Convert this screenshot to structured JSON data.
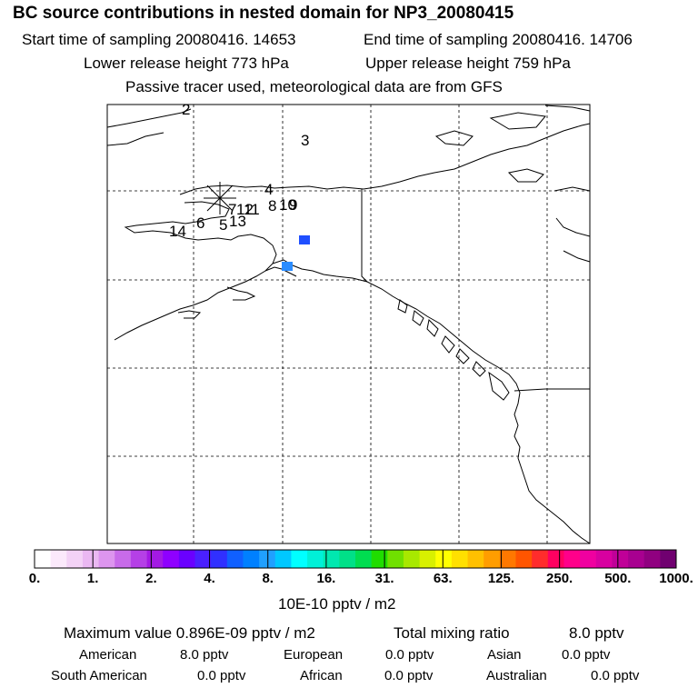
{
  "title": "BC  source contributions in nested domain for NP3_20080415",
  "header": {
    "start": "Start time of sampling 20080416. 14653",
    "end": "End time of sampling 20080416. 14706",
    "lower": "Lower release height  773 hPa",
    "upper": "Upper release height  759 hPa",
    "tracer": "Passive tracer used, meteorological data are from GFS"
  },
  "map": {
    "trajectory_labels": [
      "2",
      "3",
      "4",
      "7",
      "12",
      "11",
      "8",
      "10",
      "9",
      "6",
      "5",
      "13",
      "14"
    ],
    "hotspot_colors": [
      "#1f4fff",
      "#2a8cff"
    ]
  },
  "colorbar": {
    "ticks": [
      "0.",
      "1.",
      "2.",
      "4.",
      "8.",
      "16.",
      "31.",
      "63.",
      "125.",
      "250.",
      "500.",
      "1000."
    ],
    "colors": [
      "#ffffff",
      "#fbe9fb",
      "#f3d2f6",
      "#eab8f2",
      "#dd95ee",
      "#c86be9",
      "#b540e6",
      "#a31ae4",
      "#8f00ff",
      "#6a00ff",
      "#4a20ff",
      "#3030ff",
      "#1060ff",
      "#0080ff",
      "#20a0ff",
      "#00c8ff",
      "#00ffff",
      "#00f0d8",
      "#00e8b0",
      "#00e088",
      "#00dd50",
      "#20dd00",
      "#70e000",
      "#a8e800",
      "#d8f000",
      "#ffff00",
      "#ffe000",
      "#ffc000",
      "#ff9d00",
      "#ff7800",
      "#ff5500",
      "#ff2c2c",
      "#ff0060",
      "#ff008a",
      "#f000a0",
      "#d800a0",
      "#c00098",
      "#a80090",
      "#900080",
      "#700070"
    ],
    "units": "10E-10 pptv / m2"
  },
  "stats": {
    "max": "Maximum value  0.896E-09 pptv / m2",
    "total_label": "Total mixing ratio",
    "total_value": "8.0 pptv",
    "regions": [
      {
        "name": "American",
        "value": "8.0 pptv"
      },
      {
        "name": "European",
        "value": "0.0 pptv"
      },
      {
        "name": "Asian",
        "value": "0.0 pptv"
      },
      {
        "name": "South American",
        "value": "0.0 pptv"
      },
      {
        "name": "African",
        "value": "0.0 pptv"
      },
      {
        "name": "Australian",
        "value": "0.0 pptv"
      }
    ]
  }
}
